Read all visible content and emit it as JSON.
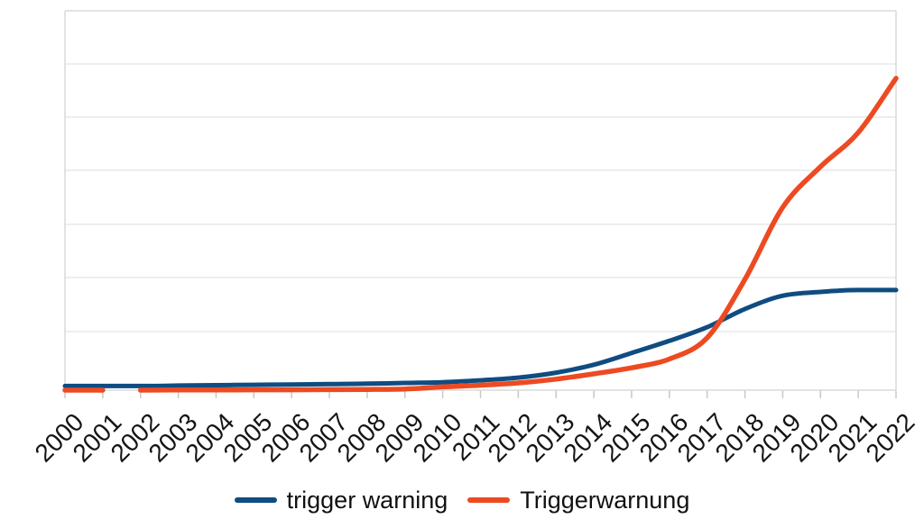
{
  "chart_data": {
    "type": "line",
    "title": "",
    "xlabel": "",
    "ylabel": "",
    "x": [
      2000,
      2001,
      2002,
      2003,
      2004,
      2005,
      2006,
      2007,
      2008,
      2009,
      2010,
      2011,
      2012,
      2013,
      2014,
      2015,
      2016,
      2017,
      2018,
      2019,
      2020,
      2021,
      2022
    ],
    "x_tick_labels": [
      "2000",
      "2001",
      "2002",
      "2003",
      "2004",
      "2005",
      "2006",
      "2007",
      "2008",
      "2009",
      "2010",
      "2011",
      "2012",
      "2013",
      "2014",
      "2015",
      "2016",
      "2017",
      "2018",
      "2019",
      "2020",
      "2021",
      "2022"
    ],
    "y_axis": {
      "tick_labels_visible": false,
      "normalized_range": [
        0,
        100
      ],
      "gridlines_visible": true
    },
    "legend_position": "bottom",
    "series": [
      {
        "name": "trigger warning",
        "color": "#0f4c81",
        "segments": [
          [
            0,
            22
          ]
        ],
        "values": [
          1.1,
          1.1,
          1.1,
          1.2,
          1.3,
          1.4,
          1.5,
          1.6,
          1.7,
          1.9,
          2.1,
          2.6,
          3.3,
          4.6,
          6.7,
          9.8,
          13.0,
          16.6,
          21.4,
          24.9,
          25.9,
          26.4,
          26.4
        ]
      },
      {
        "name": "Triggerwarnung",
        "color": "#ed4a22",
        "segments": [
          [
            0,
            1
          ],
          [
            2,
            22
          ]
        ],
        "gap_note": "line interrupted between 2001 and 2002",
        "values": [
          0,
          0,
          0,
          0.05,
          0.05,
          0.1,
          0.1,
          0.15,
          0.2,
          0.3,
          0.85,
          1.3,
          1.9,
          2.9,
          4.3,
          5.9,
          8.2,
          13.8,
          29.2,
          48.2,
          58.9,
          67.9,
          82.2
        ]
      }
    ]
  },
  "styles": {
    "gridline_color": "#e8e8e8",
    "border_color": "#dadada",
    "tick_color": "#c8c8c8",
    "label_color": "#141414"
  }
}
